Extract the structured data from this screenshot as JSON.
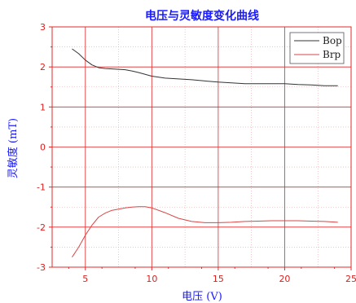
{
  "chart_data": {
    "type": "line",
    "title": "电压与灵敏度变化曲线",
    "xlabel": "电压 (V)",
    "ylabel": "灵敏度 (mT)",
    "xlim": [
      2.5,
      25
    ],
    "ylim": [
      -3,
      3
    ],
    "x_ticks": [
      5,
      10,
      15,
      20,
      25
    ],
    "x_tick_labels": [
      "5",
      "10",
      "15",
      "20",
      "25"
    ],
    "y_ticks": [
      -3,
      -2,
      -1,
      0,
      1,
      2,
      3
    ],
    "y_tick_labels": [
      "-3",
      "-2",
      "-1",
      "0",
      "1",
      "2",
      "3"
    ],
    "grid": true,
    "legend_position": "top-right",
    "colors": {
      "axis": "#e0282a",
      "grid_major": "#e0282a",
      "grid_minor": "#e9a0a0",
      "title": "#1a1aff",
      "label": "#1a1aff"
    },
    "series": [
      {
        "name": "Bop",
        "color": "#333333",
        "x": [
          4,
          4.5,
          5,
          5.5,
          6,
          6.5,
          7,
          7.5,
          8,
          8.5,
          9,
          10,
          11,
          12,
          13,
          14,
          15,
          16,
          17,
          18,
          19,
          20,
          21,
          22,
          23,
          24
        ],
        "y": [
          2.45,
          2.33,
          2.17,
          2.05,
          1.98,
          1.96,
          1.95,
          1.94,
          1.93,
          1.9,
          1.86,
          1.77,
          1.72,
          1.7,
          1.68,
          1.65,
          1.62,
          1.6,
          1.58,
          1.58,
          1.58,
          1.58,
          1.56,
          1.55,
          1.53,
          1.53
        ]
      },
      {
        "name": "Brp",
        "color": "#d94545",
        "x": [
          4,
          4.5,
          5,
          5.5,
          6,
          6.5,
          7,
          7.5,
          8,
          8.5,
          9,
          9.5,
          10,
          11,
          12,
          13,
          14,
          15,
          16,
          17,
          18,
          19,
          20,
          21,
          22,
          23,
          24
        ],
        "y": [
          -2.75,
          -2.5,
          -2.2,
          -1.95,
          -1.75,
          -1.65,
          -1.58,
          -1.55,
          -1.52,
          -1.5,
          -1.49,
          -1.49,
          -1.52,
          -1.64,
          -1.78,
          -1.86,
          -1.89,
          -1.89,
          -1.88,
          -1.86,
          -1.85,
          -1.84,
          -1.84,
          -1.84,
          -1.85,
          -1.86,
          -1.88
        ]
      }
    ]
  }
}
